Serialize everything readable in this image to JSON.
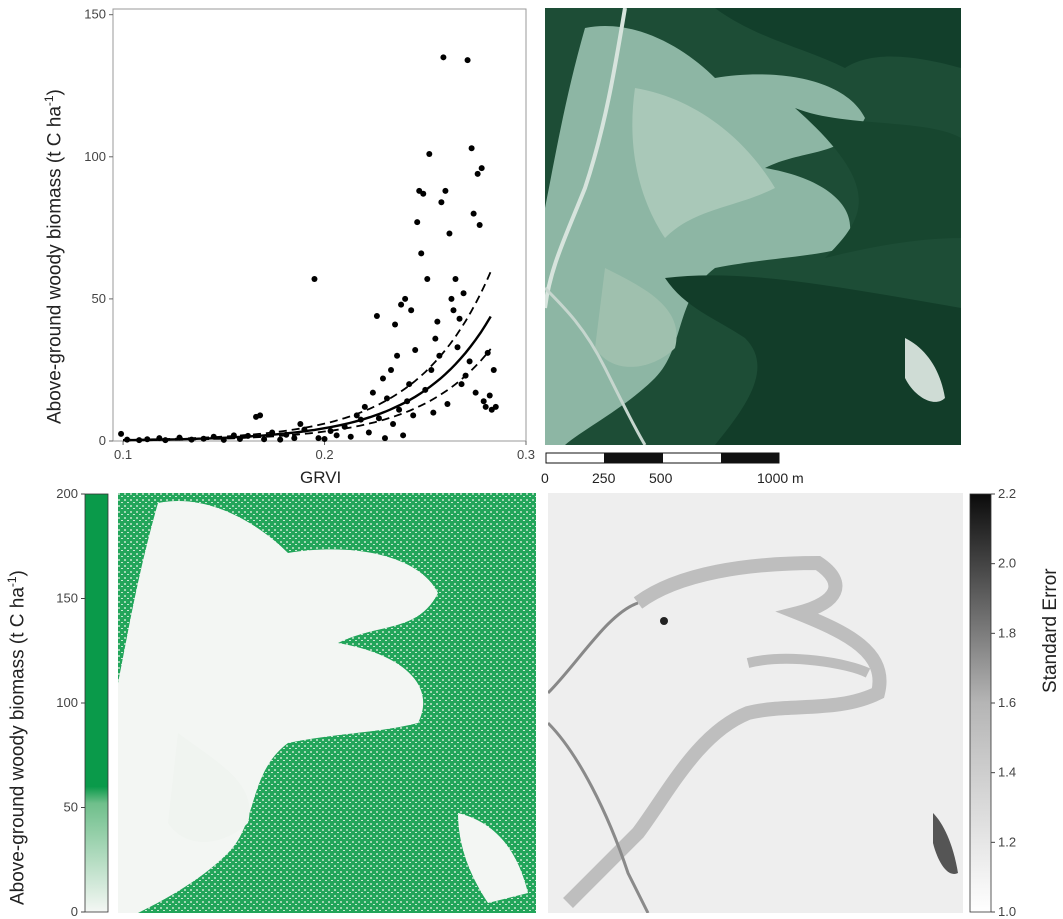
{
  "scatter": {
    "ylabel_main": "Above-ground woody biomass (t C ha",
    "ylabel_sup": "-1",
    "ylabel_close": ")",
    "xlabel": "GRVI",
    "xticks": [
      "0.1",
      "0.2",
      "0.3"
    ],
    "yticks": [
      "0",
      "50",
      "100",
      "150"
    ]
  },
  "scalebar": {
    "labels": [
      "0",
      "250",
      "500",
      "1000 m"
    ]
  },
  "biomass_map": {
    "ylabel_main": "Above-ground woody biomass (t C ha",
    "ylabel_sup": "-1",
    "ylabel_close": ")",
    "ticks": [
      "0",
      "50",
      "100",
      "150",
      "200"
    ],
    "color_high": "#0a9a4a",
    "color_low": "#f4f7f4"
  },
  "se_map": {
    "label": "Standard Error",
    "ticks": [
      "1.0",
      "1.2",
      "1.4",
      "1.6",
      "1.8",
      "2.0",
      "2.2"
    ]
  },
  "chart_data": [
    {
      "type": "scatter",
      "xlabel": "GRVI",
      "ylabel": "Above-ground woody biomass (t C ha-1)",
      "xlim": [
        0.095,
        0.3
      ],
      "ylim": [
        0,
        152
      ],
      "points": [
        [
          0.099,
          2.5
        ],
        [
          0.102,
          0.5
        ],
        [
          0.108,
          0.3
        ],
        [
          0.112,
          0.6
        ],
        [
          0.118,
          1.0
        ],
        [
          0.121,
          0.3
        ],
        [
          0.128,
          1.2
        ],
        [
          0.134,
          0.5
        ],
        [
          0.14,
          0.8
        ],
        [
          0.145,
          1.5
        ],
        [
          0.15,
          0.4
        ],
        [
          0.155,
          2.0
        ],
        [
          0.158,
          0.7
        ],
        [
          0.162,
          1.8
        ],
        [
          0.166,
          8.5
        ],
        [
          0.168,
          9.0
        ],
        [
          0.17,
          0.6
        ],
        [
          0.174,
          3.0
        ],
        [
          0.178,
          0.5
        ],
        [
          0.181,
          2.2
        ],
        [
          0.185,
          1.0
        ],
        [
          0.188,
          6.0
        ],
        [
          0.19,
          4.0
        ],
        [
          0.195,
          57.0
        ],
        [
          0.197,
          1.0
        ],
        [
          0.2,
          0.7
        ],
        [
          0.203,
          3.5
        ],
        [
          0.206,
          2.0
        ],
        [
          0.21,
          5.0
        ],
        [
          0.213,
          1.5
        ],
        [
          0.216,
          9.0
        ],
        [
          0.218,
          7.5
        ],
        [
          0.22,
          12.0
        ],
        [
          0.222,
          3.0
        ],
        [
          0.224,
          17.0
        ],
        [
          0.226,
          44.0
        ],
        [
          0.227,
          8.0
        ],
        [
          0.229,
          22.0
        ],
        [
          0.23,
          1.0
        ],
        [
          0.231,
          15.0
        ],
        [
          0.233,
          25.0
        ],
        [
          0.234,
          6.0
        ],
        [
          0.235,
          41.0
        ],
        [
          0.236,
          30.0
        ],
        [
          0.237,
          11.0
        ],
        [
          0.238,
          48.0
        ],
        [
          0.239,
          2.0
        ],
        [
          0.24,
          50.0
        ],
        [
          0.241,
          14.0
        ],
        [
          0.242,
          20.0
        ],
        [
          0.243,
          46.0
        ],
        [
          0.244,
          9.0
        ],
        [
          0.245,
          32.0
        ],
        [
          0.246,
          77.0
        ],
        [
          0.247,
          88.0
        ],
        [
          0.248,
          66.0
        ],
        [
          0.249,
          87.0
        ],
        [
          0.25,
          18.0
        ],
        [
          0.251,
          57.0
        ],
        [
          0.252,
          101.0
        ],
        [
          0.253,
          25.0
        ],
        [
          0.254,
          10.0
        ],
        [
          0.255,
          36.0
        ],
        [
          0.256,
          42.0
        ],
        [
          0.257,
          30.0
        ],
        [
          0.258,
          84.0
        ],
        [
          0.259,
          135.0
        ],
        [
          0.26,
          88.0
        ],
        [
          0.261,
          13.0
        ],
        [
          0.262,
          73.0
        ],
        [
          0.263,
          50.0
        ],
        [
          0.264,
          46.0
        ],
        [
          0.265,
          57.0
        ],
        [
          0.266,
          33.0
        ],
        [
          0.267,
          43.0
        ],
        [
          0.268,
          20.0
        ],
        [
          0.269,
          52.0
        ],
        [
          0.27,
          23.0
        ],
        [
          0.271,
          134.0
        ],
        [
          0.272,
          28.0
        ],
        [
          0.273,
          103.0
        ],
        [
          0.274,
          80.0
        ],
        [
          0.275,
          17.0
        ],
        [
          0.276,
          94.0
        ],
        [
          0.277,
          76.0
        ],
        [
          0.278,
          96.0
        ],
        [
          0.279,
          14.0
        ],
        [
          0.28,
          12.0
        ],
        [
          0.281,
          31.0
        ],
        [
          0.282,
          16.0
        ],
        [
          0.283,
          11.0
        ],
        [
          0.284,
          25.0
        ],
        [
          0.285,
          12.0
        ]
      ],
      "fit": "exponential",
      "fit_params": {
        "a": 0.018,
        "b": 27.6
      },
      "ci": {
        "lower_factor": 0.74,
        "upper_factor": 1.36
      }
    }
  ]
}
